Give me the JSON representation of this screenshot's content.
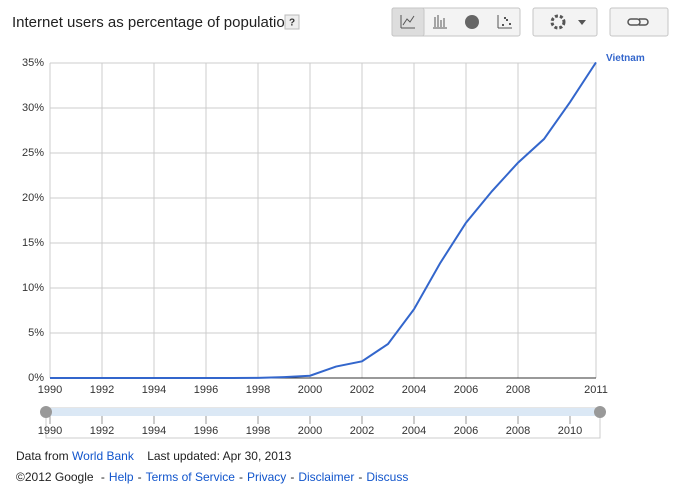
{
  "chart_data": {
    "type": "line",
    "title": "Internet users as percentage of population",
    "help_button": "?",
    "x": [
      1990,
      1991,
      1992,
      1993,
      1994,
      1995,
      1996,
      1997,
      1998,
      1999,
      2000,
      2001,
      2002,
      2003,
      2004,
      2005,
      2006,
      2007,
      2008,
      2009,
      2010,
      2011
    ],
    "series": [
      {
        "name": "Vietnam",
        "color": "#3366cc",
        "values": [
          0,
          0,
          0,
          0,
          0,
          0,
          0,
          0,
          0.01,
          0.1,
          0.25,
          1.27,
          1.85,
          3.78,
          7.64,
          12.74,
          17.25,
          20.76,
          23.92,
          26.55,
          30.65,
          35.07
        ]
      }
    ],
    "xlim": [
      1990,
      2011
    ],
    "xticks": [
      1990,
      1992,
      1994,
      1996,
      1998,
      2000,
      2002,
      2004,
      2006,
      2008,
      2011
    ],
    "ylim": [
      0,
      35
    ],
    "yticks": [
      {
        "value": 0,
        "label": "0%"
      },
      {
        "value": 5,
        "label": "5%"
      },
      {
        "value": 10,
        "label": "10%"
      },
      {
        "value": 15,
        "label": "15%"
      },
      {
        "value": 20,
        "label": "20%"
      },
      {
        "value": 25,
        "label": "25%"
      },
      {
        "value": 30,
        "label": "30%"
      },
      {
        "value": 35,
        "label": "35%"
      }
    ],
    "grid": true,
    "timeline_ticks": [
      1990,
      1992,
      1994,
      1996,
      1998,
      2000,
      2002,
      2004,
      2006,
      2008,
      2010
    ]
  },
  "footer": {
    "source_prefix": "Data from",
    "source": "World Bank",
    "updated": "Last updated: Apr 30, 2013",
    "copyright": "©2012 Google",
    "separator": "-",
    "links": [
      "Help",
      "Terms of Service",
      "Privacy",
      "Disclaimer",
      "Discuss"
    ]
  }
}
